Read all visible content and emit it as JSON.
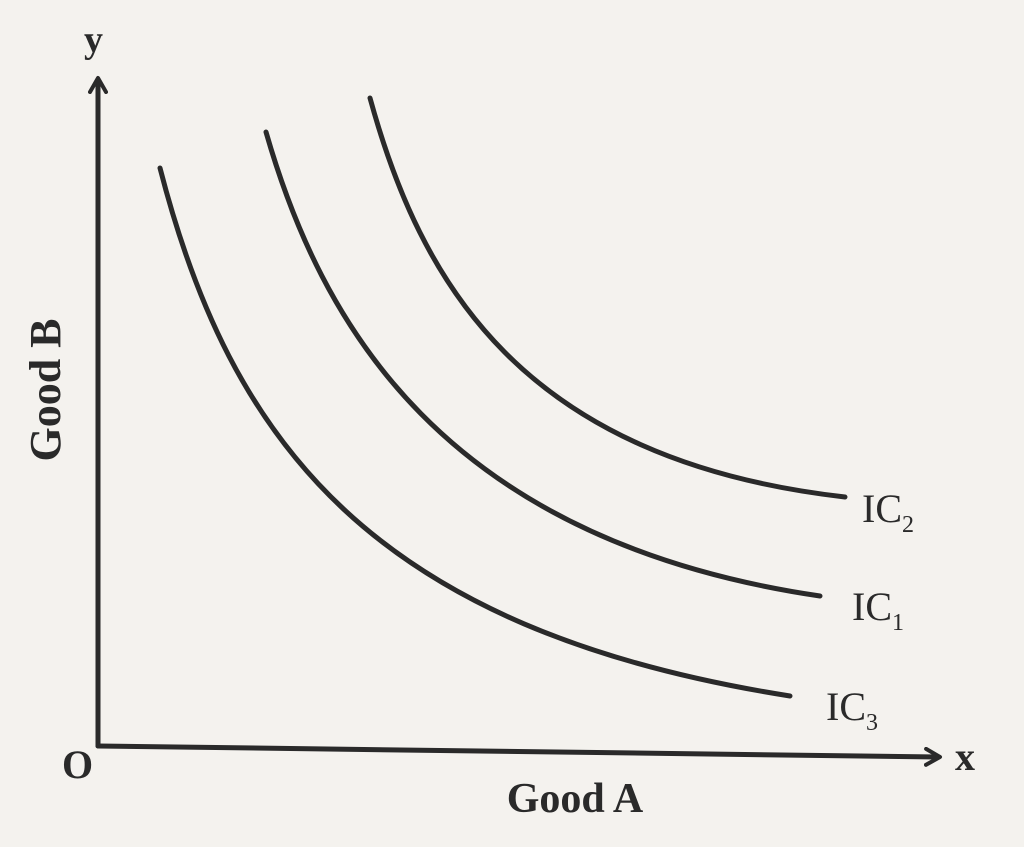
{
  "diagram": {
    "y_axis_letter": "y",
    "x_axis_letter": "x",
    "origin_label": "O",
    "y_axis_title": "Good B",
    "x_axis_title": "Good A",
    "curves": [
      {
        "id": "ic2",
        "base": "IC",
        "sub": "2"
      },
      {
        "id": "ic1",
        "base": "IC",
        "sub": "1"
      },
      {
        "id": "ic3",
        "base": "IC",
        "sub": "3"
      }
    ],
    "colors": {
      "ink": "#2a2a2a",
      "paper": "#f4f2ee"
    }
  }
}
